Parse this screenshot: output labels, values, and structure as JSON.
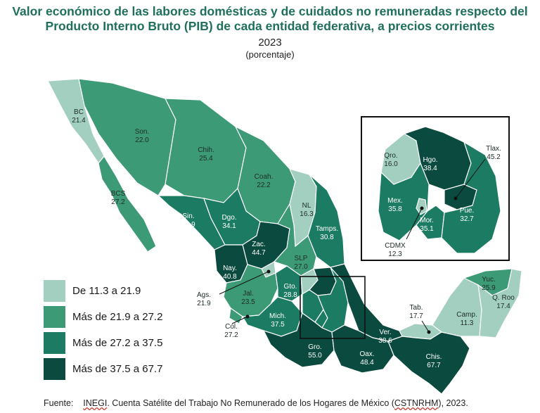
{
  "title": "Valor económico de las labores domésticas y de cuidados no remuneradas respecto del Producto Interno Bruto (PIB) de cada entidad federativa, a precios corrientes",
  "year": "2023",
  "unit": "(porcentaje)",
  "colors": {
    "class1": "#a3cfc0",
    "class2": "#3d9a76",
    "class3": "#1c7b63",
    "class4": "#0b4a3e",
    "border": "#ffffff"
  },
  "legend": [
    {
      "label": "De 11.3 a 21.9",
      "color_key": "class1"
    },
    {
      "label": "Más de 21.9 a 27.2",
      "color_key": "class2"
    },
    {
      "label": "Más de 27.2 a 37.5",
      "color_key": "class3"
    },
    {
      "label": "Más de 37.5 a 67.7",
      "color_key": "class4"
    }
  ],
  "states": {
    "bc": {
      "name": "BC",
      "value": "21.4",
      "class": "class1"
    },
    "bcs": {
      "name": "BCS",
      "value": "27.2",
      "class": "class2"
    },
    "son": {
      "name": "Son.",
      "value": "22.0",
      "class": "class2"
    },
    "chih": {
      "name": "Chih.",
      "value": "25.4",
      "class": "class2"
    },
    "coah": {
      "name": "Coah.",
      "value": "22.2",
      "class": "class2"
    },
    "nl": {
      "name": "NL",
      "value": "16.3",
      "class": "class1"
    },
    "tamps": {
      "name": "Tamps.",
      "value": "30.8",
      "class": "class3"
    },
    "sin": {
      "name": "Sin.",
      "value": "31.9",
      "class": "class3"
    },
    "dgo": {
      "name": "Dgo.",
      "value": "34.1",
      "class": "class3"
    },
    "zac": {
      "name": "Zac.",
      "value": "44.7",
      "class": "class4"
    },
    "slp": {
      "name": "SLP",
      "value": "27.0",
      "class": "class2"
    },
    "nay": {
      "name": "Nay.",
      "value": "40.8",
      "class": "class4"
    },
    "ags": {
      "name": "Ags.",
      "value": "21.9",
      "class": "class1"
    },
    "jal": {
      "name": "Jal.",
      "value": "23.5",
      "class": "class2"
    },
    "gto": {
      "name": "Gto.",
      "value": "28.8",
      "class": "class3"
    },
    "col": {
      "name": "Col.",
      "value": "27.2",
      "class": "class2"
    },
    "mich": {
      "name": "Mich.",
      "value": "37.5",
      "class": "class3"
    },
    "gro": {
      "name": "Gro.",
      "value": "55.0",
      "class": "class4"
    },
    "oax": {
      "name": "Oax.",
      "value": "48.4",
      "class": "class4"
    },
    "ver": {
      "name": "Ver.",
      "value": "38.6",
      "class": "class4"
    },
    "chis": {
      "name": "Chis.",
      "value": "67.7",
      "class": "class4"
    },
    "tab": {
      "name": "Tab.",
      "value": "17.7",
      "class": "class1"
    },
    "camp": {
      "name": "Camp.",
      "value": "11.3",
      "class": "class1"
    },
    "yuc": {
      "name": "Yuc.",
      "value": "25.9",
      "class": "class2"
    },
    "qroo": {
      "name": "Q. Roo",
      "value": "17.4",
      "class": "class1"
    },
    "qro": {
      "name": "Qro.",
      "value": "16.0",
      "class": "class1"
    },
    "hgo": {
      "name": "Hgo.",
      "value": "38.4",
      "class": "class4"
    },
    "tlax": {
      "name": "Tlax.",
      "value": "45.2",
      "class": "class4"
    },
    "mex": {
      "name": "Mex.",
      "value": "35.8",
      "class": "class3"
    },
    "pue": {
      "name": "Pue.",
      "value": "32.7",
      "class": "class3"
    },
    "mor": {
      "name": "Mor.",
      "value": "35.1",
      "class": "class3"
    },
    "cdmx": {
      "name": "CDMX",
      "value": "12.3",
      "class": "class1"
    }
  },
  "source": {
    "prefix": "Fuente:",
    "org": "INEGI",
    "text1": ". Cuenta Satélite del Trabajo No Remunerado de los Hogares de México (",
    "abbr": "CSTNRHM",
    "text2": "), 2023."
  }
}
